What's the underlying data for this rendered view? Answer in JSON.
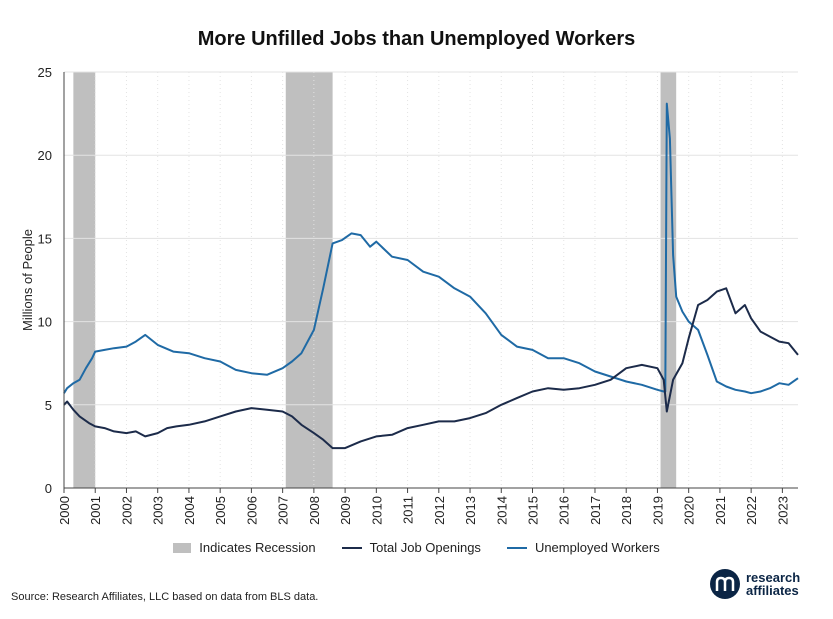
{
  "title": "More Unfilled Jobs than Unemployed Workers",
  "source": "Source: Research Affiliates, LLC based on data from BLS data.",
  "logo": {
    "line1": "research",
    "line2": "affiliates",
    "mark": "research-affiliates-logo-mark"
  },
  "colors": {
    "job_openings": "#1c2b4a",
    "unemployed": "#1f6aa5",
    "recession": "#bfbfbf",
    "grid": "#e3e3e3"
  },
  "chart_data": {
    "type": "line",
    "title": "More Unfilled Jobs than Unemployed Workers",
    "xlabel": "",
    "ylabel": "Millions of People",
    "xlim": [
      2000,
      2023.5
    ],
    "ylim": [
      0,
      25
    ],
    "yticks": [
      0,
      5,
      10,
      15,
      20,
      25
    ],
    "xticks": [
      "2000",
      "2001",
      "2002",
      "2003",
      "2004",
      "2005",
      "2006",
      "2007",
      "2008",
      "2009",
      "2010",
      "2011",
      "2012",
      "2013",
      "2014",
      "2015",
      "2016",
      "2017",
      "2018",
      "2019",
      "2020",
      "2021",
      "2022",
      "2023"
    ],
    "grid": "horizontal",
    "legend_position": "bottom",
    "recessions": {
      "name": "Indicates Recession",
      "periods": [
        [
          2000.3,
          2001.0
        ],
        [
          2007.1,
          2008.6
        ],
        [
          2019.1,
          2019.6
        ]
      ]
    },
    "series": [
      {
        "name": "Total Job Openings",
        "x": [
          2000.0,
          2000.1,
          2000.3,
          2000.5,
          2000.8,
          2001.0,
          2001.3,
          2001.6,
          2002.0,
          2002.3,
          2002.6,
          2003.0,
          2003.3,
          2003.6,
          2004.0,
          2004.5,
          2005.0,
          2005.5,
          2006.0,
          2006.5,
          2007.0,
          2007.3,
          2007.6,
          2008.0,
          2008.3,
          2008.6,
          2009.0,
          2009.5,
          2010.0,
          2010.5,
          2011.0,
          2011.5,
          2012.0,
          2012.5,
          2013.0,
          2013.5,
          2014.0,
          2014.5,
          2015.0,
          2015.5,
          2016.0,
          2016.5,
          2017.0,
          2017.5,
          2018.0,
          2018.5,
          2019.0,
          2019.2,
          2019.3,
          2019.5,
          2019.8,
          2020.0,
          2020.3,
          2020.6,
          2020.9,
          2021.2,
          2021.5,
          2021.8,
          2022.0,
          2022.3,
          2022.6,
          2022.9,
          2023.2,
          2023.5
        ],
        "values": [
          5.0,
          5.2,
          4.7,
          4.3,
          3.9,
          3.7,
          3.6,
          3.4,
          3.3,
          3.4,
          3.1,
          3.3,
          3.6,
          3.7,
          3.8,
          4.0,
          4.3,
          4.6,
          4.8,
          4.7,
          4.6,
          4.3,
          3.8,
          3.3,
          2.9,
          2.4,
          2.4,
          2.8,
          3.1,
          3.2,
          3.6,
          3.8,
          4.0,
          4.0,
          4.2,
          4.5,
          5.0,
          5.4,
          5.8,
          6.0,
          5.9,
          6.0,
          6.2,
          6.5,
          7.2,
          7.4,
          7.2,
          6.5,
          4.6,
          6.5,
          7.5,
          9.0,
          11.0,
          11.3,
          11.8,
          12.0,
          10.5,
          11.0,
          10.2,
          9.4,
          9.1,
          8.8,
          8.7,
          8.0
        ]
      },
      {
        "name": "Unemployed Workers",
        "x": [
          2000.0,
          2000.1,
          2000.3,
          2000.5,
          2000.7,
          2000.9,
          2001.0,
          2001.3,
          2001.6,
          2002.0,
          2002.3,
          2002.6,
          2003.0,
          2003.5,
          2004.0,
          2004.5,
          2005.0,
          2005.5,
          2006.0,
          2006.5,
          2007.0,
          2007.3,
          2007.6,
          2008.0,
          2008.3,
          2008.6,
          2008.9,
          2009.2,
          2009.5,
          2009.8,
          2010.0,
          2010.5,
          2011.0,
          2011.5,
          2012.0,
          2012.5,
          2013.0,
          2013.5,
          2014.0,
          2014.5,
          2015.0,
          2015.5,
          2016.0,
          2016.5,
          2017.0,
          2017.5,
          2018.0,
          2018.5,
          2019.0,
          2019.2,
          2019.25,
          2019.3,
          2019.4,
          2019.5,
          2019.6,
          2019.8,
          2020.0,
          2020.3,
          2020.6,
          2020.9,
          2021.2,
          2021.5,
          2021.8,
          2022.0,
          2022.3,
          2022.6,
          2022.9,
          2023.2,
          2023.5
        ],
        "values": [
          5.7,
          6.0,
          6.3,
          6.5,
          7.2,
          7.8,
          8.2,
          8.3,
          8.4,
          8.5,
          8.8,
          9.2,
          8.6,
          8.2,
          8.1,
          7.8,
          7.6,
          7.1,
          6.9,
          6.8,
          7.2,
          7.6,
          8.1,
          9.5,
          12.0,
          14.7,
          14.9,
          15.3,
          15.2,
          14.5,
          14.8,
          13.9,
          13.7,
          13.0,
          12.7,
          12.0,
          11.5,
          10.5,
          9.2,
          8.5,
          8.3,
          7.8,
          7.8,
          7.5,
          7.0,
          6.7,
          6.4,
          6.2,
          5.9,
          5.8,
          5.8,
          23.1,
          21.0,
          14.0,
          11.5,
          10.6,
          10.0,
          9.5,
          8.0,
          6.4,
          6.1,
          5.9,
          5.8,
          5.7,
          5.8,
          6.0,
          6.3,
          6.2,
          6.6
        ]
      }
    ]
  }
}
